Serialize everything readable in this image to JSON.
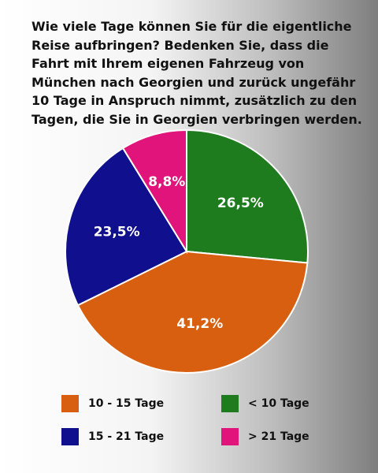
{
  "chart_data": {
    "type": "pie",
    "title": "Wie viele Tage können Sie für die eigentliche Reise aufbringen? Bedenken Sie, dass die Fahrt mit Ihrem eigenen Fahrzeug von München nach Georgien und zurück ungefähr 10 Tage in Anspruch nimmt, zusätzlich zu den Tagen, die Sie in Georgien verbringen werden.",
    "slices": [
      {
        "label": "< 10 Tage",
        "value": 26.5,
        "value_label": "26,5%",
        "color": "#1e7b1e"
      },
      {
        "label": "10 - 15 Tage",
        "value": 41.2,
        "value_label": "41,2%",
        "color": "#d85f10"
      },
      {
        "label": "15 - 21 Tage",
        "value": 23.5,
        "value_label": "23,5%",
        "color": "#10108e"
      },
      {
        "label": "> 21 Tage",
        "value": 8.8,
        "value_label": "8,8%",
        "color": "#e0147a"
      }
    ],
    "legend_position": "bottom"
  },
  "legend": [
    {
      "label": "10 - 15 Tage",
      "color": "#d85f10"
    },
    {
      "label": "< 10 Tage",
      "color": "#1e7b1e"
    },
    {
      "label": "15 - 21 Tage",
      "color": "#10108e"
    },
    {
      "label": "> 21 Tage",
      "color": "#e0147a"
    }
  ]
}
